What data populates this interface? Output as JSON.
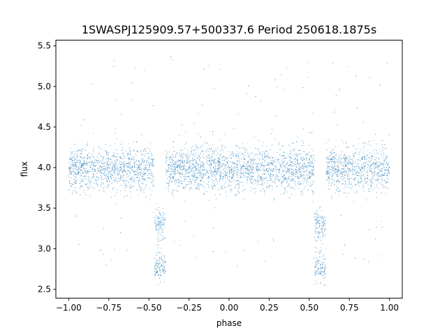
{
  "chart_data": {
    "type": "scatter",
    "title": "1SWASPJ125909.57+500337.6 Period 250618.1875s",
    "xlabel": "phase",
    "ylabel": "flux",
    "xlim": [
      -1.08,
      1.08
    ],
    "ylim": [
      2.39,
      5.57
    ],
    "xticks": [
      -1.0,
      -0.75,
      -0.5,
      -0.25,
      0.0,
      0.25,
      0.5,
      0.75,
      1.0
    ],
    "xtick_labels": [
      "−1.00",
      "−0.75",
      "−0.50",
      "−0.25",
      "0.00",
      "0.25",
      "0.50",
      "0.75",
      "1.00"
    ],
    "yticks": [
      2.5,
      3.0,
      3.5,
      4.0,
      4.5,
      5.0,
      5.5
    ],
    "ytick_labels": [
      "2.5",
      "3.0",
      "3.5",
      "4.0",
      "4.5",
      "5.0",
      "5.5"
    ],
    "grid": false,
    "marker_color": "#1f77b4",
    "series": [
      {
        "description": "phase-folded light curve, repeated over two cycles",
        "baseline_flux": 3.98,
        "baseline_spread": 0.13,
        "x_range": [
          -1.0,
          1.0
        ],
        "eclipses": [
          {
            "center_phase": -0.43,
            "min_flux": 2.55,
            "upper_cluster_flux": 3.3
          },
          {
            "center_phase": 0.57,
            "min_flux": 2.55,
            "upper_cluster_flux": 3.3
          }
        ],
        "flux_range": [
          2.5,
          5.45
        ],
        "sample_points": [
          [
            -1.0,
            3.95
          ],
          [
            -0.9,
            4.0
          ],
          [
            -0.8,
            3.9
          ],
          [
            -0.7,
            4.05
          ],
          [
            -0.6,
            3.98
          ],
          [
            -0.5,
            4.0
          ],
          [
            -0.45,
            3.3
          ],
          [
            -0.43,
            2.6
          ],
          [
            -0.4,
            3.1
          ],
          [
            -0.35,
            3.97
          ],
          [
            -0.25,
            4.0
          ],
          [
            -0.1,
            3.95
          ],
          [
            0.0,
            4.02
          ],
          [
            0.1,
            3.98
          ],
          [
            0.25,
            3.96
          ],
          [
            0.35,
            4.05
          ],
          [
            0.5,
            4.0
          ],
          [
            0.55,
            3.3
          ],
          [
            0.57,
            2.6
          ],
          [
            0.6,
            3.1
          ],
          [
            0.65,
            3.98
          ],
          [
            0.75,
            4.0
          ],
          [
            0.9,
            3.96
          ],
          [
            1.0,
            3.95
          ]
        ]
      }
    ]
  }
}
